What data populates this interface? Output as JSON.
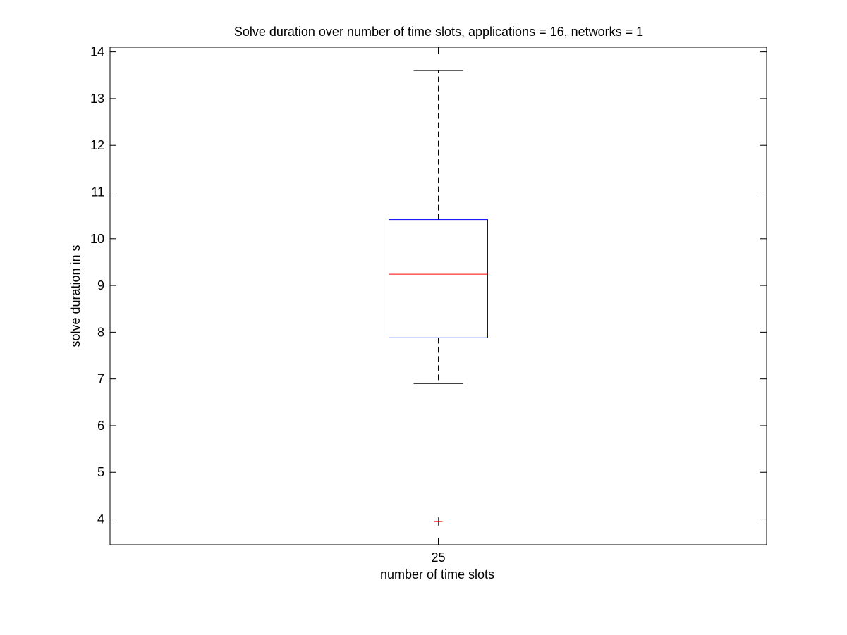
{
  "chart_data": {
    "type": "box",
    "title": "Solve duration over number of time slots, applications = 16, networks = 1",
    "xlabel": "number of time slots",
    "ylabel": "solve duration in s",
    "ylim": [
      3.45,
      14.1
    ],
    "yticks": [
      4,
      5,
      6,
      7,
      8,
      9,
      10,
      11,
      12,
      13,
      14
    ],
    "categories": [
      "25"
    ],
    "boxes": [
      {
        "category": "25",
        "whisker_low": 6.9,
        "q1": 7.88,
        "median": 9.24,
        "q3": 10.41,
        "whisker_high": 13.6,
        "outliers": [
          3.95
        ]
      }
    ],
    "colors": {
      "box": "#0000ff",
      "median": "#ff0000",
      "whisker": "#000000",
      "outlier": "#ff0000"
    }
  }
}
